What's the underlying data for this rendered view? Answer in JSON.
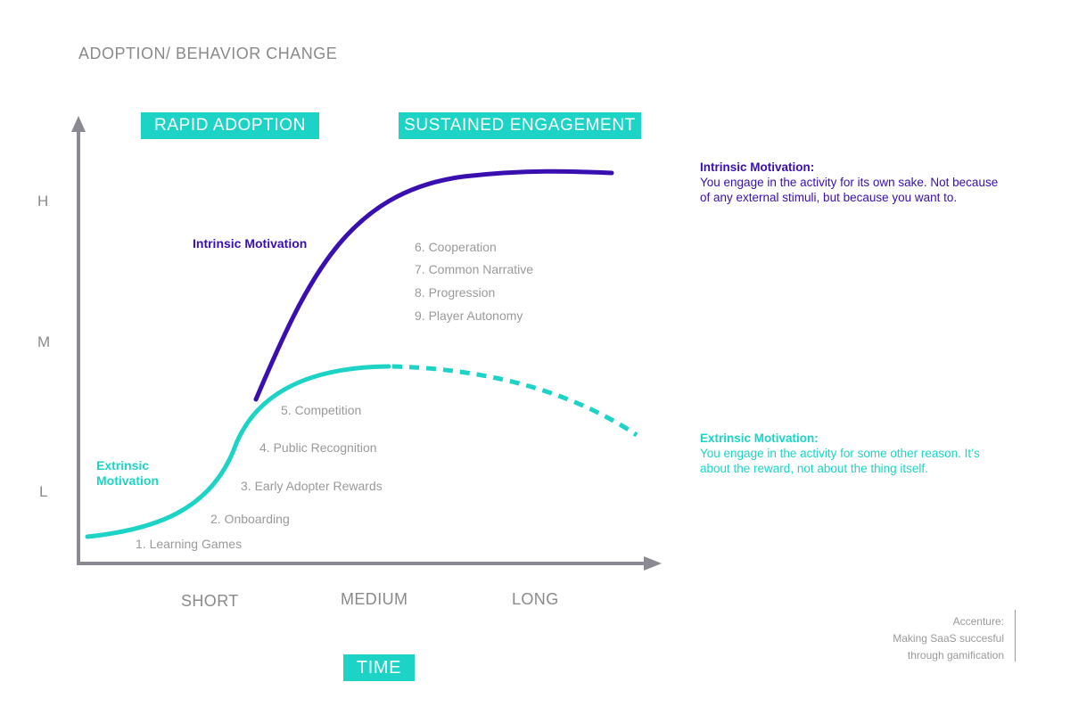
{
  "title": "ADOPTION/ BEHAVIOR CHANGE",
  "phases": {
    "rapid": "RAPID ADOPTION",
    "sustained": "SUSTAINED ENGAGEMENT"
  },
  "y_axis": {
    "high": "H",
    "medium": "M",
    "low": "L"
  },
  "x_axis": {
    "short": "SHORT",
    "medium": "MEDIUM",
    "long": "LONG",
    "label": "TIME"
  },
  "curves": {
    "intrinsic": {
      "label": "Intrinsic Motivation",
      "color": "#3a0fb0"
    },
    "extrinsic": {
      "label": "Extrinsic Motivation",
      "color": "#1dd3c6"
    }
  },
  "steps": [
    "1. Learning Games",
    "2. Onboarding",
    "3. Early Adopter Rewards",
    "4. Public Recognition",
    "5. Competition",
    "6. Cooperation",
    "7. Common Narrative",
    "8. Progression",
    "9. Player Autonomy"
  ],
  "definitions": {
    "intrinsic": {
      "title": "Intrinsic Motivation:",
      "text": "You engage in the activity for its own sake. Not because of any external stimuli, but because you want to."
    },
    "extrinsic": {
      "title": "Extrinsic Motivation:",
      "text": "You engage in the activity for some other reason. It’s about the reward, not about the thing itself."
    }
  },
  "credit": {
    "line1": "Accenture:",
    "line2": "Making SaaS succesful",
    "line3": "through gamification"
  }
}
